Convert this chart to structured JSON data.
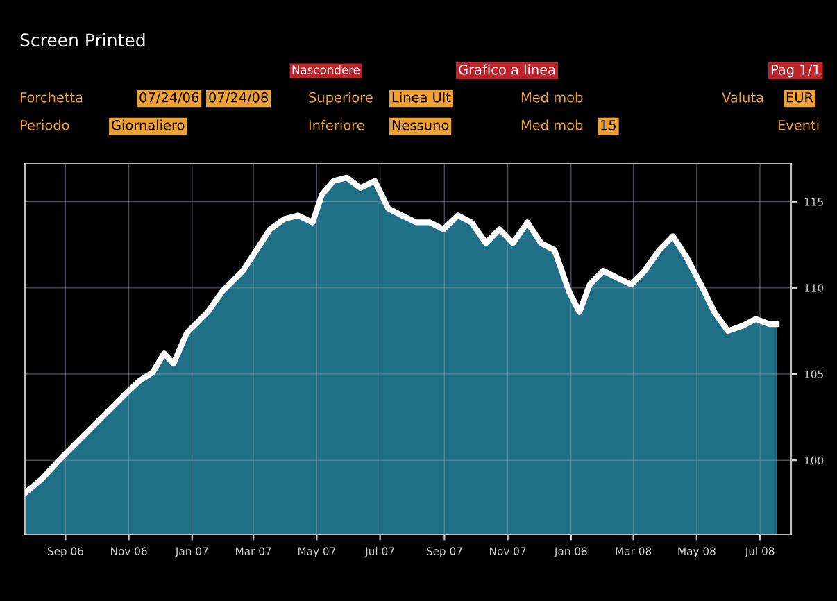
{
  "chart_data": {
    "type": "area",
    "color": "#1f6f86",
    "x": [
      "2006-07-24",
      "2006-08-09",
      "2006-08-29",
      "2006-09-18",
      "2006-10-08",
      "2006-10-28",
      "2006-11-11",
      "2006-11-24",
      "2006-12-05",
      "2006-12-14",
      "2006-12-27",
      "2007-01-16",
      "2007-01-30",
      "2007-02-19",
      "2007-03-04",
      "2007-03-17",
      "2007-03-31",
      "2007-04-13",
      "2007-04-27",
      "2007-05-06",
      "2007-05-17",
      "2007-05-30",
      "2007-06-12",
      "2007-06-26",
      "2007-07-09",
      "2007-07-22",
      "2007-08-05",
      "2007-08-18",
      "2007-08-31",
      "2007-09-14",
      "2007-09-27",
      "2007-10-11",
      "2007-10-24",
      "2007-11-06",
      "2007-11-20",
      "2007-12-03",
      "2007-12-16",
      "2007-12-30",
      "2008-01-09",
      "2008-01-19",
      "2008-02-01",
      "2008-02-14",
      "2008-02-28",
      "2008-03-12",
      "2008-03-26",
      "2008-04-08",
      "2008-04-21",
      "2008-05-05",
      "2008-05-18",
      "2008-05-31",
      "2008-06-14",
      "2008-06-27",
      "2008-07-10",
      "2008-07-17"
    ],
    "series": [
      {
        "color": "#ffffff",
        "values": [
          98.1,
          98.9,
          100.2,
          101.4,
          102.6,
          103.8,
          104.6,
          105.1,
          106.2,
          105.6,
          107.4,
          108.6,
          109.8,
          111.0,
          112.2,
          113.4,
          114.0,
          114.2,
          113.8,
          115.4,
          116.2,
          116.4,
          115.8,
          116.2,
          114.6,
          114.2,
          113.8,
          113.8,
          113.4,
          114.2,
          113.8,
          112.6,
          113.4,
          112.6,
          113.8,
          112.6,
          112.2,
          109.8,
          108.6,
          110.2,
          111.0,
          110.6,
          110.2,
          111.0,
          112.2,
          113.0,
          111.8,
          110.2,
          108.6,
          107.5,
          107.8,
          108.2,
          107.9,
          107.9
        ]
      }
    ],
    "xlim": [
      "2006-07-24",
      "2008-07-31"
    ],
    "xticks": [
      {
        "value": "2006-09-01",
        "label": "Sep 06"
      },
      {
        "value": "2006-11-01",
        "label": "Nov 06"
      },
      {
        "value": "2007-01-01",
        "label": "Jan 07"
      },
      {
        "value": "2007-03-01",
        "label": "Mar 07"
      },
      {
        "value": "2007-05-01",
        "label": "May 07"
      },
      {
        "value": "2007-07-01",
        "label": "Jul 07"
      },
      {
        "value": "2007-09-01",
        "label": "Sep 07"
      },
      {
        "value": "2007-11-01",
        "label": "Nov 07"
      },
      {
        "value": "2008-01-01",
        "label": "Jan 08"
      },
      {
        "value": "2008-03-01",
        "label": "Mar 08"
      },
      {
        "value": "2008-05-01",
        "label": "May 08"
      },
      {
        "value": "2008-07-01",
        "label": "Jul 08"
      }
    ],
    "ylim": [
      95.7,
      117.2
    ],
    "yticks": [
      100,
      105,
      110,
      115
    ],
    "grid": true,
    "legend": false,
    "annotations": [
      "Screen Printed",
      "Nascondere",
      "Grafico a linea",
      "Pag 1/1",
      "Forchetta",
      "07/24/06",
      "07/24/08",
      "Superiore",
      "Linea Ult",
      "Med mob",
      "Valuta",
      "EUR",
      "Periodo",
      "Giornaliero",
      "Inferiore",
      "Nessuno",
      "Med mob",
      "15",
      "Eventi"
    ]
  }
}
